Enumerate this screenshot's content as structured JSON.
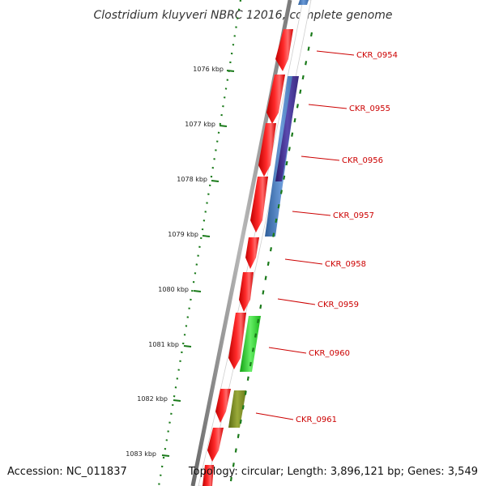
{
  "title": "Clostridium kluyveri NBRC 12016, complete genome",
  "footer": {
    "accession": "Accession: NC_011837",
    "topology": "Topology: circular; Length: 3,896,121 bp; Genes: 3,549"
  },
  "colors": {
    "backbone": "#8a8a8a",
    "ruler": "#1a7a1a",
    "gene_forward": "#ff0000",
    "gene_label": "#cc0000",
    "feature_blue": "#4a7fc0",
    "feature_purple": "#4a3a9a",
    "feature_green": "#22cc22",
    "feature_olive": "#7a8a22"
  },
  "ruler": {
    "unit": "kbp",
    "ticks": [
      "1076 kbp",
      "1077 kbp",
      "1078 kbp",
      "1079 kbp",
      "1080 kbp",
      "1081 kbp",
      "1082 kbp",
      "1083 kbp"
    ]
  },
  "genes": [
    {
      "label": "CKR_0954"
    },
    {
      "label": "CKR_0955"
    },
    {
      "label": "CKR_0956"
    },
    {
      "label": "CKR_0957"
    },
    {
      "label": "CKR_0958"
    },
    {
      "label": "CKR_0959"
    },
    {
      "label": "CKR_0960"
    },
    {
      "label": "CKR_0961"
    }
  ]
}
